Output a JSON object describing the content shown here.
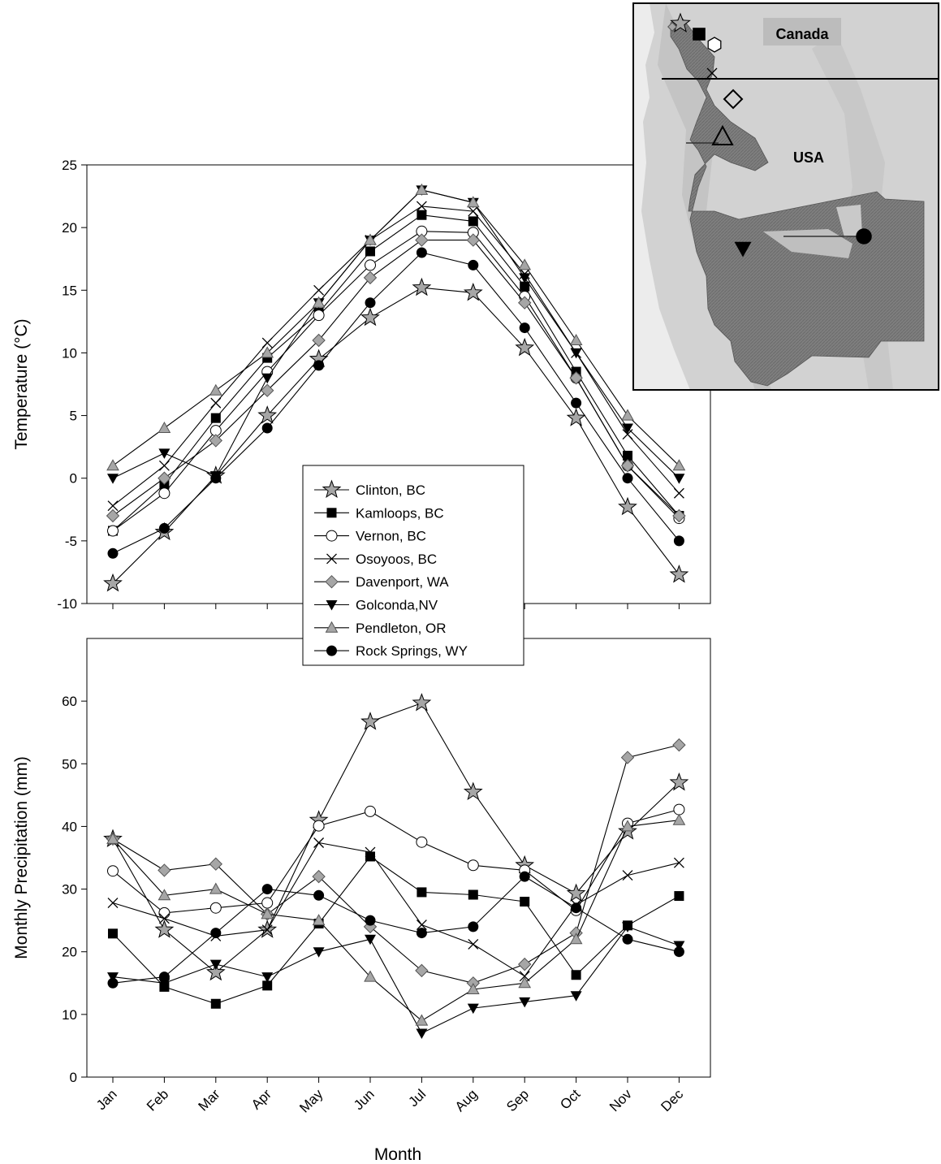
{
  "months": [
    "Jan",
    "Feb",
    "Mar",
    "Apr",
    "May",
    "Jun",
    "Jul",
    "Aug",
    "Sep",
    "Oct",
    "Nov",
    "Dec"
  ],
  "stations": [
    {
      "name": "Clinton, BC",
      "marker": "star-gray"
    },
    {
      "name": "Kamloops, BC",
      "marker": "square-black"
    },
    {
      "name": "Vernon, BC",
      "marker": "circle-white"
    },
    {
      "name": "Osoyoos, BC",
      "marker": "cross"
    },
    {
      "name": "Davenport, WA",
      "marker": "diamond-gray"
    },
    {
      "name": "Golconda,NV",
      "marker": "triangle-down-black"
    },
    {
      "name": "Pendleton, OR",
      "marker": "triangle-up-gray"
    },
    {
      "name": "Rock Springs, WY",
      "marker": "circle-black"
    }
  ],
  "chart_data": [
    {
      "type": "line",
      "id": "temperature",
      "ylabel": "Temperature (°C)",
      "ylim": [
        -10,
        25
      ],
      "yticks": [
        -10,
        -5,
        0,
        5,
        10,
        15,
        20,
        25
      ],
      "categories": [
        "Jan",
        "Feb",
        "Mar",
        "Apr",
        "May",
        "Jun",
        "Jul",
        "Aug",
        "Sep",
        "Oct",
        "Nov",
        "Dec"
      ],
      "series": [
        {
          "name": "Clinton, BC",
          "values": [
            -8.4,
            -4.3,
            0.2,
            5,
            9.5,
            12.8,
            15.2,
            14.8,
            10.4,
            4.8,
            -2.3,
            -7.7
          ]
        },
        {
          "name": "Kamloops, BC",
          "values": [
            -4.2,
            -0.5,
            4.8,
            9.6,
            13.2,
            18.1,
            21,
            20.5,
            15.3,
            8.5,
            1.8,
            -3
          ]
        },
        {
          "name": "Vernon, BC",
          "values": [
            -4.2,
            -1.2,
            3.8,
            8.5,
            13,
            17,
            19.7,
            19.6,
            14.5,
            8,
            1,
            -3.2
          ]
        },
        {
          "name": "Osoyoos, BC",
          "values": [
            -2.2,
            1,
            6,
            10.8,
            15,
            19,
            21.7,
            21.3,
            16.3,
            10,
            3.5,
            -1.2
          ]
        },
        {
          "name": "Davenport, WA",
          "values": [
            -3,
            0,
            3,
            7,
            11,
            16,
            19,
            19,
            14,
            8,
            1,
            -3
          ]
        },
        {
          "name": "Golconda,NV",
          "values": [
            0,
            2,
            0.2,
            8,
            14,
            19,
            23,
            22,
            16,
            10,
            4,
            0
          ]
        },
        {
          "name": "Pendleton, OR",
          "values": [
            1,
            4,
            7,
            10,
            14,
            19,
            23,
            22,
            17,
            11,
            5,
            1
          ]
        },
        {
          "name": "Rock Springs, WY",
          "values": [
            -6,
            -4,
            0,
            4,
            9,
            14,
            18,
            17,
            12,
            6,
            0,
            -5
          ]
        }
      ]
    },
    {
      "type": "line",
      "id": "precipitation",
      "ylabel": "Monthly Precipitation (mm)",
      "xlabel": "Month",
      "ylim": [
        0,
        70
      ],
      "yticks": [
        0,
        10,
        20,
        30,
        40,
        50,
        60
      ],
      "categories": [
        "Jan",
        "Feb",
        "Mar",
        "Apr",
        "May",
        "Jun",
        "Jul",
        "Aug",
        "Sep",
        "Oct",
        "Nov",
        "Dec"
      ],
      "series": [
        {
          "name": "Clinton, BC",
          "values": [
            38,
            23.5,
            16.7,
            23.5,
            41,
            56.7,
            59.7,
            45.5,
            33.8,
            29.3,
            39.2,
            47
          ]
        },
        {
          "name": "Kamloops, BC",
          "values": [
            22.9,
            14.4,
            11.7,
            14.6,
            24.5,
            35.2,
            29.5,
            29.1,
            28,
            16.3,
            24.2,
            28.9
          ]
        },
        {
          "name": "Vernon, BC",
          "values": [
            32.9,
            26.2,
            27,
            27.8,
            40.1,
            42.4,
            37.5,
            33.8,
            33,
            26.6,
            40.5,
            42.7
          ]
        },
        {
          "name": "Osoyoos, BC",
          "values": [
            27.8,
            25.3,
            22.5,
            23.5,
            37.4,
            35.9,
            24.3,
            21.2,
            16.1,
            27.5,
            32.2,
            34.2
          ]
        },
        {
          "name": "Davenport, WA",
          "values": [
            38,
            33,
            34,
            26,
            32,
            24,
            17,
            15,
            18,
            23,
            51,
            53
          ]
        },
        {
          "name": "Golconda,NV",
          "values": [
            16,
            15,
            18,
            16,
            20,
            22,
            7,
            11,
            12,
            13,
            24,
            21
          ]
        },
        {
          "name": "Pendleton, OR",
          "values": [
            38,
            29,
            30,
            26,
            25,
            16,
            9,
            14,
            15,
            22,
            40,
            41
          ]
        },
        {
          "name": "Rock Springs, WY",
          "values": [
            15,
            16,
            23,
            30,
            29,
            25,
            23,
            24,
            32,
            27,
            22,
            20
          ]
        }
      ]
    }
  ],
  "map": {
    "labels": {
      "canada": "Canada",
      "usa": "USA"
    },
    "colors": {
      "land": "#d4d4d4",
      "region": "#7a7a7a",
      "ocean": "#f4f4f4"
    }
  }
}
